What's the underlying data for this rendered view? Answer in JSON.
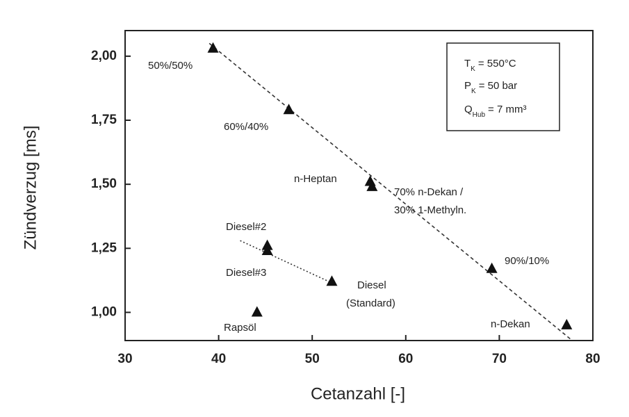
{
  "chart_data": {
    "type": "scatter",
    "x_label": "Cetanzahl [-]",
    "y_label": "Zündverzug [ms]",
    "xlim": [
      30,
      80
    ],
    "ylim": [
      0.89,
      2.1
    ],
    "xticks": [
      30,
      40,
      50,
      60,
      70,
      80
    ],
    "yticks": [
      {
        "value": 1,
        "label": "1,00"
      },
      {
        "value": 1.25,
        "label": "1,25"
      },
      {
        "value": 1.5,
        "label": "1,50"
      },
      {
        "value": 1.75,
        "label": "1,75"
      },
      {
        "value": 2,
        "label": "2,00"
      }
    ],
    "color": "#111111",
    "x": [
      39.4,
      47.5,
      56.2,
      56.4,
      69.2,
      77.2,
      45.2,
      45.2,
      52.1,
      44.1
    ],
    "values": [
      2.03,
      1.79,
      1.51,
      1.49,
      1.17,
      0.95,
      1.26,
      1.24,
      1.12,
      1.0
    ],
    "labels": [
      [
        "50%/50%"
      ],
      [
        "60%/40%"
      ],
      [
        "n-Heptan"
      ],
      [
        "70% n-Dekan /",
        "30% 1-Methyln."
      ],
      [
        "90%/10%"
      ],
      [
        "n-Dekan"
      ],
      [
        "Diesel#2"
      ],
      [
        "Diesel#3"
      ],
      [
        "Diesel",
        "(Standard)"
      ],
      [
        "Rapsöl"
      ]
    ],
    "trend_lines": [
      {
        "style": "dashed",
        "x": [
          39,
          77.8
        ],
        "y": [
          2.05,
          0.89
        ]
      },
      {
        "style": "dotted",
        "x": [
          42.3,
          52.4
        ],
        "y": [
          1.28,
          1.11
        ]
      }
    ],
    "legend_box": [
      {
        "symbol": "T",
        "sub": "K",
        "text": "= 550°C"
      },
      {
        "symbol": "P",
        "sub": "K",
        "text": "= 50 bar"
      },
      {
        "symbol": "Q",
        "sub": "Hub",
        "text": "= 7 mm³"
      }
    ]
  }
}
